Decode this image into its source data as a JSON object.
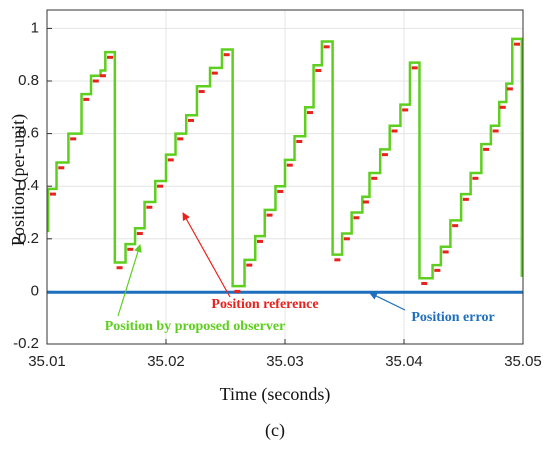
{
  "chart_data": {
    "type": "line",
    "xlabel": "Time (seconds)",
    "ylabel": "Position (per-unit)",
    "caption": "(c)",
    "xlim": [
      35.01,
      35.05
    ],
    "xticks": [
      35.01,
      35.02,
      35.03,
      35.04,
      35.05
    ],
    "ylim": [
      -0.2,
      1.07
    ],
    "yticks": [
      -0.2,
      0,
      0.2,
      0.4,
      0.6,
      0.8,
      1
    ],
    "grid": true,
    "series": [
      {
        "name": "Position by proposed observer",
        "color": "#5fcf1f",
        "style": "steps-post",
        "x": [
          35.01,
          35.0101,
          35.0108,
          35.0118,
          35.0129,
          35.0137,
          35.0145,
          35.0149,
          35.0157,
          35.0166,
          35.0174,
          35.0182,
          35.0191,
          35.02,
          35.0208,
          35.0217,
          35.0226,
          35.0237,
          35.0247,
          35.0256,
          35.0266,
          35.0275,
          35.0283,
          35.0292,
          35.03,
          35.0308,
          35.0317,
          35.0324,
          35.0331,
          35.034,
          35.0348,
          35.0356,
          35.0365,
          35.0371,
          35.038,
          35.0388,
          35.0397,
          35.0405,
          35.0413,
          35.0424,
          35.0431,
          35.0439,
          35.0448,
          35.0456,
          35.0465,
          35.0473,
          35.048,
          35.0486,
          35.0491,
          35.0499,
          35.05
        ],
        "values": [
          0.23,
          0.39,
          0.49,
          0.6,
          0.75,
          0.82,
          0.84,
          0.91,
          0.11,
          0.18,
          0.24,
          0.34,
          0.42,
          0.52,
          0.6,
          0.67,
          0.78,
          0.85,
          0.92,
          0.02,
          0.12,
          0.21,
          0.31,
          0.4,
          0.5,
          0.59,
          0.7,
          0.86,
          0.95,
          0.14,
          0.22,
          0.3,
          0.36,
          0.45,
          0.54,
          0.63,
          0.71,
          0.87,
          0.05,
          0.1,
          0.17,
          0.27,
          0.37,
          0.45,
          0.56,
          0.63,
          0.72,
          0.79,
          0.96,
          0.06,
          0.06
        ]
      },
      {
        "name": "Position reference",
        "color": "#e8231e",
        "style": "dash-markers",
        "x": [
          35.0105,
          35.0112,
          35.0122,
          35.0133,
          35.0141,
          35.0147,
          35.0153,
          35.0161,
          35.017,
          35.0178,
          35.0186,
          35.0195,
          35.0204,
          35.0212,
          35.0221,
          35.023,
          35.0241,
          35.0251,
          35.026,
          35.027,
          35.0279,
          35.0287,
          35.0296,
          35.0304,
          35.0312,
          35.0321,
          35.0328,
          35.0335,
          35.0344,
          35.0352,
          35.036,
          35.0368,
          35.0375,
          35.0384,
          35.0392,
          35.0401,
          35.0409,
          35.0417,
          35.0428,
          35.0435,
          35.0443,
          35.0452,
          35.046,
          35.0469,
          35.0477,
          35.0483,
          35.0489,
          35.0495
        ],
        "values": [
          0.37,
          0.47,
          0.58,
          0.73,
          0.8,
          0.82,
          0.89,
          0.09,
          0.16,
          0.22,
          0.32,
          0.4,
          0.5,
          0.58,
          0.65,
          0.76,
          0.83,
          0.9,
          0.0,
          0.1,
          0.19,
          0.29,
          0.38,
          0.48,
          0.57,
          0.68,
          0.84,
          0.93,
          0.12,
          0.2,
          0.28,
          0.34,
          0.43,
          0.52,
          0.61,
          0.69,
          0.85,
          0.03,
          0.08,
          0.15,
          0.25,
          0.35,
          0.43,
          0.54,
          0.61,
          0.7,
          0.77,
          0.94
        ]
      },
      {
        "name": "Position error",
        "color": "#1f6fbf",
        "style": "line",
        "x": [
          35.01,
          35.05
        ],
        "values": [
          -0.003,
          -0.003
        ]
      }
    ]
  }
}
